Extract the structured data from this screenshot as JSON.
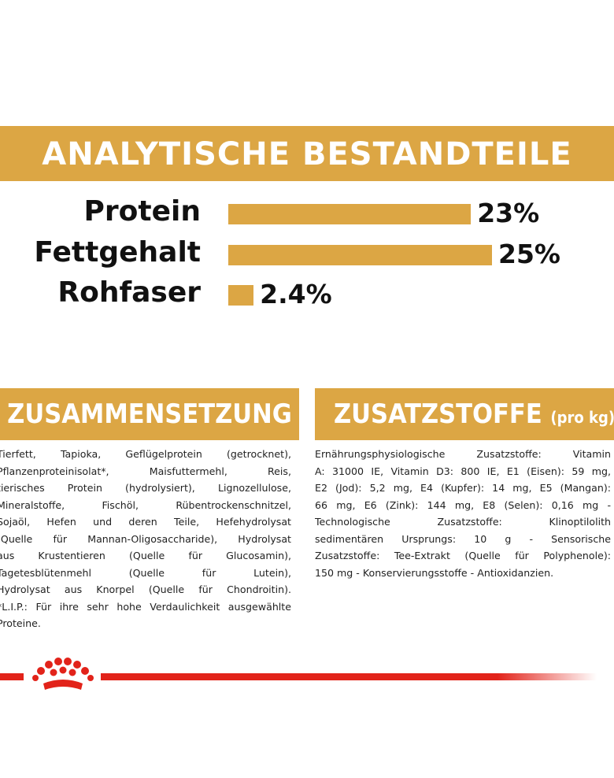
{
  "analysis": {
    "title": "ANALYTISCHE BESTANDTEILE",
    "items": [
      {
        "label": "Protein",
        "value": 23,
        "value_label": "23%"
      },
      {
        "label": "Fettgehalt",
        "value": 25,
        "value_label": "25%"
      },
      {
        "label": "Rohfaser",
        "value": 2.4,
        "value_label": "2.4%"
      }
    ]
  },
  "composition": {
    "title": "ZUSAMMENSETZUNG",
    "lines": [
      "Tierfett, Tapioka, Geflügelprotein (getrocknet),",
      "Pflanzenproteinisolat*, Maisfuttermehl, Reis,",
      "tierisches Protein (hydrolysiert), Lignozellulose,",
      "Mineralstoffe, Fischöl, Rübentrockenschnitzel,",
      "Sojaöl, Hefen und deren Teile, Hefehydrolysat",
      "(Quelle für Mannan-Oligosaccharide), Hydrolysat",
      "aus Krustentieren (Quelle für Glucosamin),",
      "Tagetesblütenmehl (Quelle für Lutein),",
      "Hydrolysat aus Knorpel (Quelle für Chondroitin).",
      "*L.I.P.: Für ihre sehr hohe Verdaulichkeit ausgewählte",
      "Proteine."
    ]
  },
  "additives": {
    "title": "ZUSATZSTOFFE",
    "unit": "(pro kg)",
    "lines": [
      "Ernährungsphysiologische Zusatzstoffe: Vitamin",
      "A: 31000 IE, Vitamin D3: 800 IE, E1 (Eisen): 59 mg,",
      "E2 (Jod): 5,2 mg, E4 (Kupfer): 14 mg, E5 (Mangan):",
      "66 mg, E6 (Zink): 144 mg, E8 (Selen): 0,16 mg -",
      "Technologische Zusatzstoffe: Klinoptilolith",
      "sedimentären Ursprungs: 10 g - Sensorische",
      "Zusatzstoffe: Tee-Extrakt (Quelle für Polyphenole):",
      "150 mg - Konservierungsstoffe - Antioxidanzien."
    ]
  }
}
